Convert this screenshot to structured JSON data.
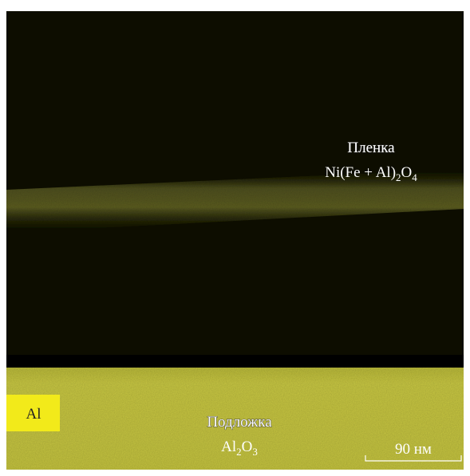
{
  "image": {
    "film": {
      "title": "Пленка",
      "formula_parts": [
        "Ni(Fe + Al)",
        "2",
        "O",
        "4"
      ]
    },
    "element_label": "Al",
    "substrate": {
      "title": "Подложка",
      "formula_parts": [
        "Al",
        "2",
        "O",
        "3"
      ]
    },
    "scale_bar": "90 нм"
  }
}
